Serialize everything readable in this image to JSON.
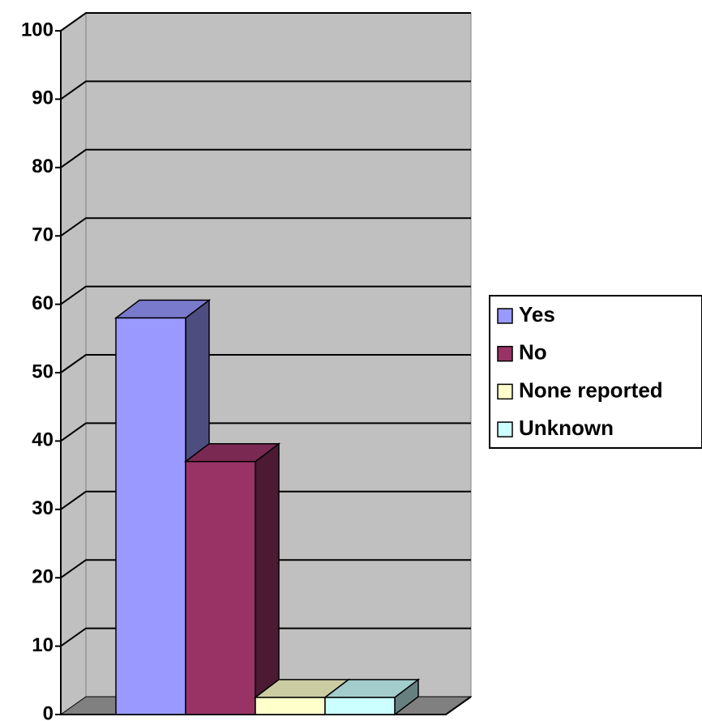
{
  "chart_data": {
    "type": "bar3d",
    "categories": [
      null
    ],
    "series": [
      {
        "name": "Yes",
        "color": "#9999ff",
        "values": [
          58
        ]
      },
      {
        "name": "No",
        "color": "#993366",
        "values": [
          37
        ]
      },
      {
        "name": "None reported",
        "color": "#ffffcc",
        "values": [
          2.5
        ]
      },
      {
        "name": "Unknown",
        "color": "#ccffff",
        "values": [
          2.5
        ]
      }
    ],
    "ylim": [
      0,
      100
    ],
    "yticks": [
      0,
      10,
      20,
      30,
      40,
      50,
      60,
      70,
      80,
      90,
      100
    ],
    "grid": true,
    "legend": "right"
  }
}
